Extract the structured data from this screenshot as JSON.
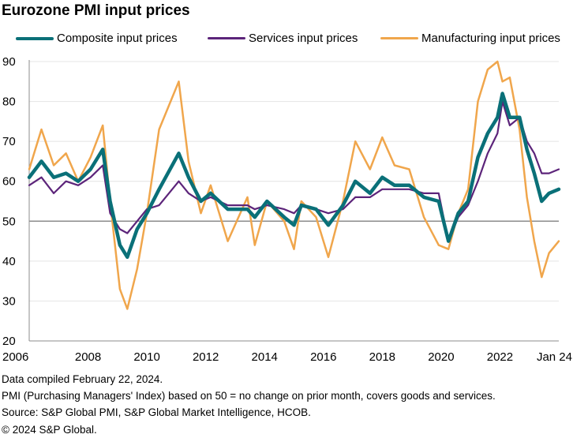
{
  "chart_data": {
    "type": "line",
    "title": "Eurozone PMI input prices",
    "x_ticks": [
      "2006",
      "2008",
      "2010",
      "2012",
      "2014",
      "2016",
      "2018",
      "2020",
      "2022",
      "Jan 24"
    ],
    "xlim": [
      "2006-01",
      "2024-01"
    ],
    "ylim": [
      20,
      90
    ],
    "y_ticks": [
      20,
      30,
      40,
      50,
      60,
      70,
      80,
      90
    ],
    "reference_line": 50,
    "grid": "horizontal",
    "legend_position": "top",
    "series": [
      {
        "name": "Composite input prices",
        "color": "#0a7078",
        "points": [
          [
            "2006-01",
            61
          ],
          [
            "2006-06",
            65
          ],
          [
            "2006-11",
            61
          ],
          [
            "2007-04",
            62
          ],
          [
            "2007-09",
            60
          ],
          [
            "2008-02",
            63
          ],
          [
            "2008-07",
            68
          ],
          [
            "2008-10",
            55
          ],
          [
            "2009-02",
            44
          ],
          [
            "2009-05",
            41
          ],
          [
            "2009-09",
            48
          ],
          [
            "2010-01",
            52
          ],
          [
            "2010-06",
            58
          ],
          [
            "2011-02",
            67
          ],
          [
            "2011-06",
            61
          ],
          [
            "2011-11",
            55
          ],
          [
            "2012-03",
            57
          ],
          [
            "2012-10",
            53
          ],
          [
            "2013-06",
            53
          ],
          [
            "2013-09",
            51
          ],
          [
            "2014-02",
            55
          ],
          [
            "2014-09",
            51
          ],
          [
            "2015-01",
            49
          ],
          [
            "2015-04",
            54
          ],
          [
            "2015-10",
            53
          ],
          [
            "2016-03",
            49
          ],
          [
            "2016-09",
            54
          ],
          [
            "2017-02",
            60
          ],
          [
            "2017-08",
            57
          ],
          [
            "2018-01",
            61
          ],
          [
            "2018-06",
            59
          ],
          [
            "2018-12",
            59
          ],
          [
            "2019-06",
            56
          ],
          [
            "2019-12",
            55
          ],
          [
            "2020-04",
            45
          ],
          [
            "2020-08",
            52
          ],
          [
            "2020-12",
            55
          ],
          [
            "2021-04",
            66
          ],
          [
            "2021-08",
            72
          ],
          [
            "2021-12",
            76
          ],
          [
            "2022-02",
            82
          ],
          [
            "2022-05",
            76
          ],
          [
            "2022-09",
            76
          ],
          [
            "2022-12",
            68
          ],
          [
            "2023-03",
            62
          ],
          [
            "2023-06",
            55
          ],
          [
            "2023-09",
            57
          ],
          [
            "2024-01",
            58
          ]
        ]
      },
      {
        "name": "Services input prices",
        "color": "#5c247a",
        "points": [
          [
            "2006-01",
            59
          ],
          [
            "2006-06",
            61
          ],
          [
            "2006-11",
            57
          ],
          [
            "2007-04",
            60
          ],
          [
            "2007-09",
            59
          ],
          [
            "2008-02",
            61
          ],
          [
            "2008-07",
            64
          ],
          [
            "2008-10",
            52
          ],
          [
            "2009-02",
            48
          ],
          [
            "2009-05",
            47
          ],
          [
            "2009-09",
            50
          ],
          [
            "2010-01",
            53
          ],
          [
            "2010-06",
            54
          ],
          [
            "2011-02",
            60
          ],
          [
            "2011-06",
            57
          ],
          [
            "2011-11",
            55
          ],
          [
            "2012-03",
            56
          ],
          [
            "2012-10",
            54
          ],
          [
            "2013-06",
            54
          ],
          [
            "2013-09",
            53
          ],
          [
            "2014-02",
            54
          ],
          [
            "2014-09",
            53
          ],
          [
            "2015-01",
            52
          ],
          [
            "2015-04",
            54
          ],
          [
            "2015-10",
            53
          ],
          [
            "2016-03",
            52
          ],
          [
            "2016-09",
            53
          ],
          [
            "2017-02",
            56
          ],
          [
            "2017-08",
            56
          ],
          [
            "2018-01",
            58
          ],
          [
            "2018-06",
            58
          ],
          [
            "2018-12",
            58
          ],
          [
            "2019-06",
            57
          ],
          [
            "2019-12",
            57
          ],
          [
            "2020-04",
            45
          ],
          [
            "2020-08",
            51
          ],
          [
            "2020-12",
            54
          ],
          [
            "2021-04",
            60
          ],
          [
            "2021-08",
            67
          ],
          [
            "2021-12",
            72
          ],
          [
            "2022-02",
            80
          ],
          [
            "2022-05",
            74
          ],
          [
            "2022-09",
            76
          ],
          [
            "2022-12",
            70
          ],
          [
            "2023-03",
            67
          ],
          [
            "2023-06",
            62
          ],
          [
            "2023-09",
            62
          ],
          [
            "2024-01",
            63
          ]
        ]
      },
      {
        "name": "Manufacturing input prices",
        "color": "#f0a64c",
        "points": [
          [
            "2006-01",
            63
          ],
          [
            "2006-06",
            73
          ],
          [
            "2006-11",
            64
          ],
          [
            "2007-04",
            67
          ],
          [
            "2007-09",
            60
          ],
          [
            "2008-02",
            66
          ],
          [
            "2008-07",
            74
          ],
          [
            "2008-10",
            55
          ],
          [
            "2009-02",
            33
          ],
          [
            "2009-05",
            28
          ],
          [
            "2009-09",
            38
          ],
          [
            "2010-01",
            52
          ],
          [
            "2010-06",
            73
          ],
          [
            "2011-02",
            85
          ],
          [
            "2011-06",
            65
          ],
          [
            "2011-11",
            52
          ],
          [
            "2012-03",
            59
          ],
          [
            "2012-10",
            45
          ],
          [
            "2013-06",
            56
          ],
          [
            "2013-09",
            44
          ],
          [
            "2014-02",
            55
          ],
          [
            "2014-09",
            50
          ],
          [
            "2015-01",
            43
          ],
          [
            "2015-04",
            55
          ],
          [
            "2015-10",
            51
          ],
          [
            "2016-03",
            41
          ],
          [
            "2016-09",
            55
          ],
          [
            "2017-02",
            70
          ],
          [
            "2017-08",
            63
          ],
          [
            "2018-01",
            71
          ],
          [
            "2018-06",
            64
          ],
          [
            "2018-12",
            63
          ],
          [
            "2019-06",
            51
          ],
          [
            "2019-12",
            44
          ],
          [
            "2020-04",
            43
          ],
          [
            "2020-08",
            52
          ],
          [
            "2020-12",
            58
          ],
          [
            "2021-04",
            80
          ],
          [
            "2021-08",
            88
          ],
          [
            "2021-12",
            90
          ],
          [
            "2022-02",
            85
          ],
          [
            "2022-05",
            86
          ],
          [
            "2022-09",
            73
          ],
          [
            "2022-12",
            56
          ],
          [
            "2023-03",
            45
          ],
          [
            "2023-06",
            36
          ],
          [
            "2023-09",
            42
          ],
          [
            "2024-01",
            45
          ]
        ]
      }
    ]
  },
  "footer": {
    "compiled": "Data compiled February 22, 2024.",
    "note": "PMI (Purchasing Managers' Index) based on 50 = no change on prior month, covers goods and services.",
    "source": "Source: S&P Global PMI, S&P Global Market Intelligence, HCOB.",
    "copyright": "© 2024 S&P Global."
  }
}
